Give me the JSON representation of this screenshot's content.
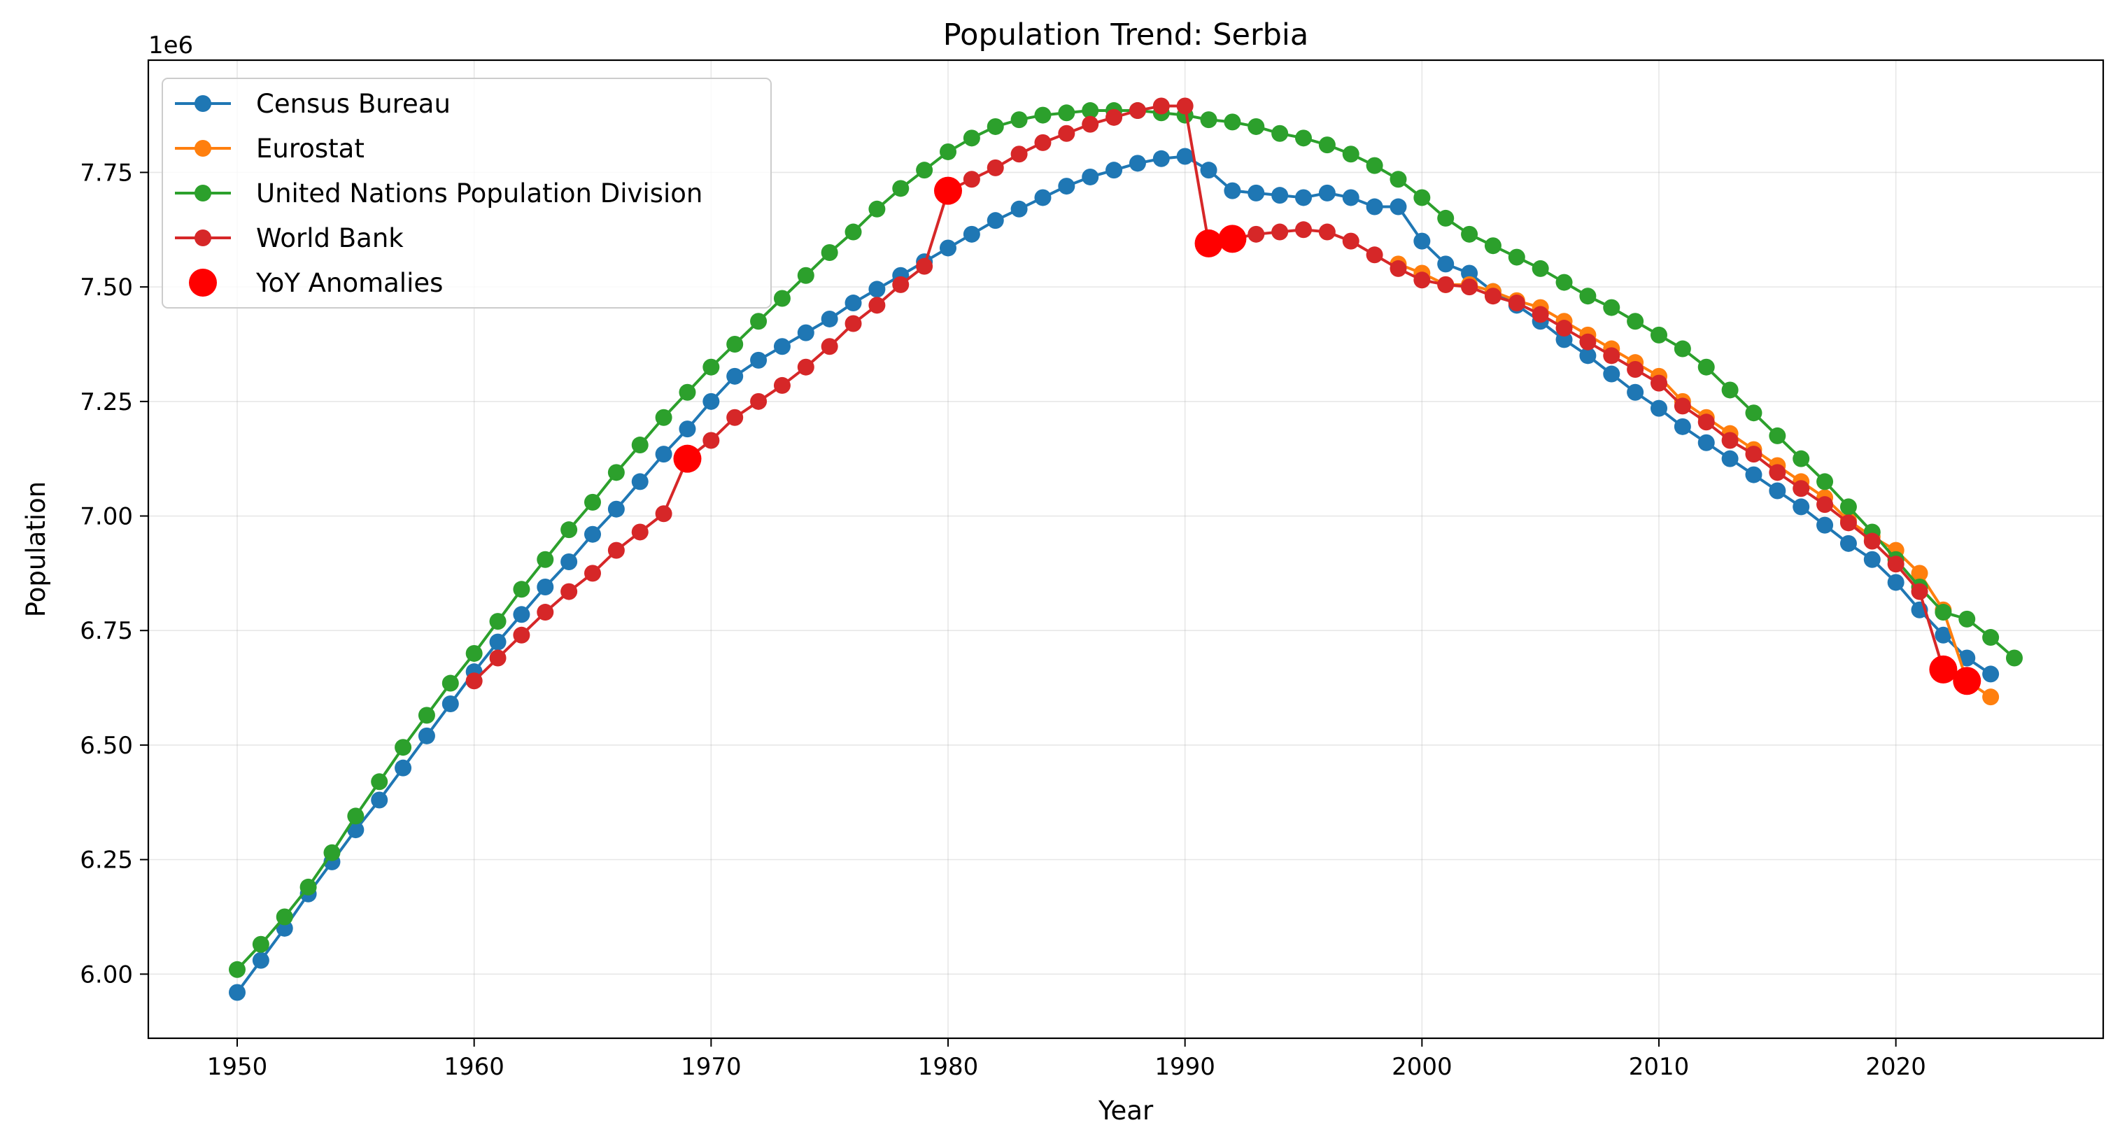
{
  "chart_data": {
    "type": "line",
    "title": "Population Trend: Serbia",
    "xlabel": "Year",
    "ylabel": "Population",
    "offset_label": "1e6",
    "xlim": [
      1946.25,
      2028.75
    ],
    "ylim": [
      5.86,
      7.995
    ],
    "x_ticks": [
      1950,
      1960,
      1970,
      1980,
      1990,
      2000,
      2010,
      2020
    ],
    "x_tick_labels": [
      "1950",
      "1960",
      "1970",
      "1980",
      "1990",
      "2000",
      "2010",
      "2020"
    ],
    "y_ticks": [
      6.0,
      6.25,
      6.5,
      6.75,
      7.0,
      7.25,
      7.5,
      7.75
    ],
    "y_tick_labels": [
      "6.00",
      "6.25",
      "6.50",
      "6.75",
      "7.00",
      "7.25",
      "7.50",
      "7.75"
    ],
    "grid": true,
    "legend_position": "top-left",
    "series": [
      {
        "name": "Census Bureau",
        "color": "#1f77b4",
        "x": [
          1950,
          1951,
          1952,
          1953,
          1954,
          1955,
          1956,
          1957,
          1958,
          1959,
          1960,
          1961,
          1962,
          1963,
          1964,
          1965,
          1966,
          1967,
          1968,
          1969,
          1970,
          1971,
          1972,
          1973,
          1974,
          1975,
          1976,
          1977,
          1978,
          1979,
          1980,
          1981,
          1982,
          1983,
          1984,
          1985,
          1986,
          1987,
          1988,
          1989,
          1990,
          1991,
          1992,
          1993,
          1994,
          1995,
          1996,
          1997,
          1998,
          1999,
          2000,
          2001,
          2002,
          2003,
          2004,
          2005,
          2006,
          2007,
          2008,
          2009,
          2010,
          2011,
          2012,
          2013,
          2014,
          2015,
          2016,
          2017,
          2018,
          2019,
          2020,
          2021,
          2022,
          2023,
          2024
        ],
        "values": [
          5.96,
          6.03,
          6.1,
          6.175,
          6.245,
          6.315,
          6.38,
          6.45,
          6.52,
          6.59,
          6.66,
          6.725,
          6.785,
          6.845,
          6.9,
          6.96,
          7.015,
          7.075,
          7.135,
          7.19,
          7.25,
          7.305,
          7.34,
          7.37,
          7.4,
          7.43,
          7.465,
          7.495,
          7.525,
          7.555,
          7.585,
          7.615,
          7.645,
          7.67,
          7.695,
          7.72,
          7.74,
          7.755,
          7.77,
          7.78,
          7.785,
          7.755,
          7.71,
          7.705,
          7.7,
          7.695,
          7.705,
          7.695,
          7.675,
          7.675,
          7.6,
          7.55,
          7.53,
          7.49,
          7.46,
          7.425,
          7.385,
          7.35,
          7.31,
          7.27,
          7.235,
          7.195,
          7.16,
          7.125,
          7.09,
          7.055,
          7.02,
          6.98,
          6.94,
          6.905,
          6.855,
          6.795,
          6.74,
          6.69,
          6.655
        ]
      },
      {
        "name": "Eurostat",
        "color": "#ff7f0e",
        "x": [
          1999,
          2000,
          2001,
          2002,
          2003,
          2004,
          2005,
          2006,
          2007,
          2008,
          2009,
          2010,
          2011,
          2012,
          2013,
          2014,
          2015,
          2016,
          2017,
          2018,
          2019,
          2020,
          2021,
          2022,
          2023,
          2024
        ],
        "values": [
          7.55,
          7.53,
          7.505,
          7.505,
          7.49,
          7.47,
          7.455,
          7.425,
          7.395,
          7.365,
          7.335,
          7.305,
          7.25,
          7.215,
          7.18,
          7.145,
          7.11,
          7.075,
          7.04,
          6.99,
          6.955,
          6.925,
          6.875,
          6.795,
          6.64,
          6.605
        ]
      },
      {
        "name": "United Nations Population Division",
        "color": "#2ca02c",
        "x": [
          1950,
          1951,
          1952,
          1953,
          1954,
          1955,
          1956,
          1957,
          1958,
          1959,
          1960,
          1961,
          1962,
          1963,
          1964,
          1965,
          1966,
          1967,
          1968,
          1969,
          1970,
          1971,
          1972,
          1973,
          1974,
          1975,
          1976,
          1977,
          1978,
          1979,
          1980,
          1981,
          1982,
          1983,
          1984,
          1985,
          1986,
          1987,
          1988,
          1989,
          1990,
          1991,
          1992,
          1993,
          1994,
          1995,
          1996,
          1997,
          1998,
          1999,
          2000,
          2001,
          2002,
          2003,
          2004,
          2005,
          2006,
          2007,
          2008,
          2009,
          2010,
          2011,
          2012,
          2013,
          2014,
          2015,
          2016,
          2017,
          2018,
          2019,
          2020,
          2021,
          2022,
          2023,
          2024,
          2025
        ],
        "values": [
          6.01,
          6.065,
          6.125,
          6.19,
          6.265,
          6.345,
          6.42,
          6.495,
          6.565,
          6.635,
          6.7,
          6.77,
          6.84,
          6.905,
          6.97,
          7.03,
          7.095,
          7.155,
          7.215,
          7.27,
          7.325,
          7.375,
          7.425,
          7.475,
          7.525,
          7.575,
          7.62,
          7.67,
          7.715,
          7.755,
          7.795,
          7.825,
          7.85,
          7.865,
          7.875,
          7.88,
          7.885,
          7.885,
          7.885,
          7.88,
          7.875,
          7.865,
          7.86,
          7.85,
          7.835,
          7.825,
          7.81,
          7.79,
          7.765,
          7.735,
          7.695,
          7.65,
          7.615,
          7.59,
          7.565,
          7.54,
          7.51,
          7.48,
          7.455,
          7.425,
          7.395,
          7.365,
          7.325,
          7.275,
          7.225,
          7.175,
          7.125,
          7.075,
          7.02,
          6.965,
          6.905,
          6.845,
          6.79,
          6.775,
          6.735,
          6.69
        ]
      },
      {
        "name": "World Bank",
        "color": "#d62728",
        "x": [
          1960,
          1961,
          1962,
          1963,
          1964,
          1965,
          1966,
          1967,
          1968,
          1969,
          1970,
          1971,
          1972,
          1973,
          1974,
          1975,
          1976,
          1977,
          1978,
          1979,
          1980,
          1981,
          1982,
          1983,
          1984,
          1985,
          1986,
          1987,
          1988,
          1989,
          1990,
          1991,
          1992,
          1993,
          1994,
          1995,
          1996,
          1997,
          1998,
          1999,
          2000,
          2001,
          2002,
          2003,
          2004,
          2005,
          2006,
          2007,
          2008,
          2009,
          2010,
          2011,
          2012,
          2013,
          2014,
          2015,
          2016,
          2017,
          2018,
          2019,
          2020,
          2021,
          2022,
          2023
        ],
        "values": [
          6.64,
          6.69,
          6.74,
          6.79,
          6.835,
          6.875,
          6.925,
          6.965,
          7.005,
          7.125,
          7.165,
          7.215,
          7.25,
          7.285,
          7.325,
          7.37,
          7.42,
          7.46,
          7.505,
          7.545,
          7.71,
          7.735,
          7.76,
          7.79,
          7.815,
          7.835,
          7.855,
          7.87,
          7.885,
          7.895,
          7.895,
          7.595,
          7.605,
          7.615,
          7.62,
          7.625,
          7.62,
          7.6,
          7.57,
          7.54,
          7.515,
          7.505,
          7.5,
          7.48,
          7.465,
          7.44,
          7.41,
          7.38,
          7.35,
          7.32,
          7.29,
          7.24,
          7.205,
          7.165,
          7.135,
          7.095,
          7.06,
          7.025,
          6.985,
          6.945,
          6.895,
          6.835,
          6.665,
          6.64
        ]
      }
    ],
    "anomalies": {
      "name": "YoY Anomalies",
      "color": "#ff0000",
      "x": [
        1969,
        1980,
        1991,
        1992,
        2022,
        2023
      ],
      "values": [
        7.125,
        7.71,
        7.595,
        7.605,
        6.665,
        6.64
      ]
    }
  }
}
